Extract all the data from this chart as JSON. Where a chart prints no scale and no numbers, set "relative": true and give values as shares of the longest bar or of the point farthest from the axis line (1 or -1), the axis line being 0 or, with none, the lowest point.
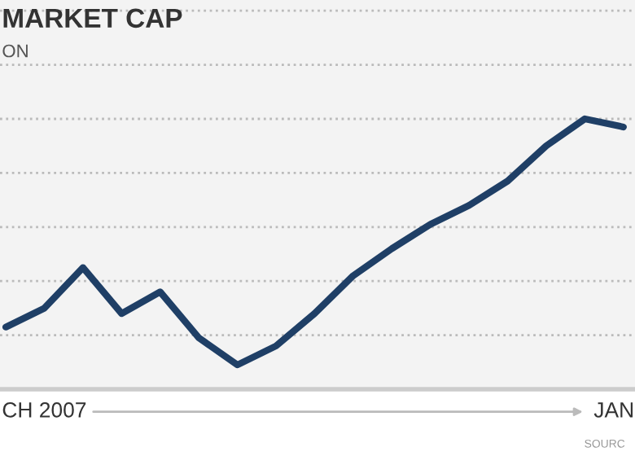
{
  "chart_data": {
    "type": "line",
    "title": "MARKET CAP",
    "subtitle": "ON",
    "relative": true,
    "categories": [
      null,
      null,
      null,
      null,
      null,
      null,
      null,
      null,
      null,
      null,
      null,
      null,
      null,
      null,
      null,
      null,
      null
    ],
    "series": [
      {
        "color": "#1f3f66",
        "values": [
          0.23,
          0.3,
          0.45,
          0.28,
          0.36,
          0.19,
          0.09,
          0.16,
          0.28,
          0.42,
          0.52,
          0.61,
          0.68,
          0.77,
          0.9,
          1.0,
          0.97
        ]
      }
    ],
    "annotations": [
      "CH 2007",
      "JAN",
      "SOURC"
    ],
    "grid": "y",
    "legend": false,
    "marker": "none",
    "line_style": "solid"
  }
}
